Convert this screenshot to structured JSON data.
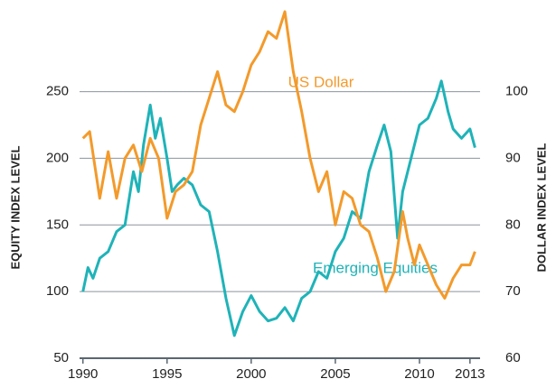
{
  "chart_data": {
    "type": "line",
    "y_label": "EQUITY INDEX LEVEL",
    "y2_label": "DOLLAR INDEX LEVEL",
    "xlim": [
      1989.8,
      2013.6
    ],
    "xticks": [
      1990,
      1995,
      2000,
      2005,
      2010,
      2013
    ],
    "ylim": [
      50,
      312
    ],
    "yticks": [
      50,
      100,
      150,
      200,
      250
    ],
    "y2lim": [
      60,
      112.4
    ],
    "y2ticks": [
      60,
      70,
      80,
      90,
      100
    ],
    "grid": true,
    "series": [
      {
        "name": "Emerging Equities",
        "color": "#1fb3b8",
        "x": [
          1990,
          1990.3,
          1990.6,
          1991,
          1991.5,
          1992,
          1992.5,
          1993,
          1993.3,
          1993.6,
          1994,
          1994.3,
          1994.6,
          1995,
          1995.3,
          1995.6,
          1996,
          1996.5,
          1997,
          1997.5,
          1998,
          1998.5,
          1999,
          1999.5,
          2000,
          2000.5,
          2001,
          2001.5,
          2002,
          2002.5,
          2003,
          2003.5,
          2004,
          2004.5,
          2005,
          2005.5,
          2006,
          2006.5,
          2007,
          2007.5,
          2007.9,
          2008.3,
          2008.7,
          2009,
          2009.5,
          2010,
          2010.5,
          2011,
          2011.3,
          2011.7,
          2012,
          2012.5,
          2013,
          2013.3
        ],
        "values": [
          100,
          118,
          110,
          125,
          130,
          145,
          150,
          190,
          175,
          210,
          240,
          215,
          230,
          200,
          175,
          180,
          185,
          180,
          165,
          160,
          130,
          95,
          67,
          85,
          97,
          85,
          78,
          80,
          88,
          78,
          95,
          100,
          115,
          110,
          130,
          140,
          160,
          155,
          190,
          210,
          225,
          205,
          140,
          175,
          200,
          225,
          230,
          245,
          258,
          235,
          222,
          215,
          222,
          208
        ]
      },
      {
        "name": "US Dollar",
        "color": "#f39a2b",
        "axis": "y2",
        "x": [
          1990,
          1990.4,
          1991,
          1991.5,
          1992,
          1992.5,
          1993,
          1993.5,
          1994,
          1994.5,
          1995,
          1995.5,
          1996,
          1996.5,
          1997,
          1997.5,
          1998,
          1998.5,
          1999,
          1999.5,
          2000,
          2000.5,
          2001,
          2001.5,
          2002,
          2002.5,
          2003,
          2003.5,
          2004,
          2004.5,
          2005,
          2005.5,
          2006,
          2006.5,
          2007,
          2007.5,
          2008,
          2008.5,
          2009,
          2009.3,
          2009.7,
          2010,
          2010.5,
          2011,
          2011.5,
          2012,
          2012.5,
          2013,
          2013.3
        ],
        "values": [
          93,
          94,
          84,
          91,
          84,
          90,
          92,
          88,
          93,
          90,
          81,
          85,
          86,
          88,
          95,
          99,
          103,
          98,
          97,
          100,
          104,
          106,
          109,
          108,
          112,
          103,
          97,
          90,
          85,
          88,
          80,
          85,
          84,
          80,
          79,
          75,
          70,
          73,
          82,
          78,
          74,
          77,
          74,
          71,
          69,
          72,
          74,
          74,
          76
        ]
      }
    ]
  }
}
